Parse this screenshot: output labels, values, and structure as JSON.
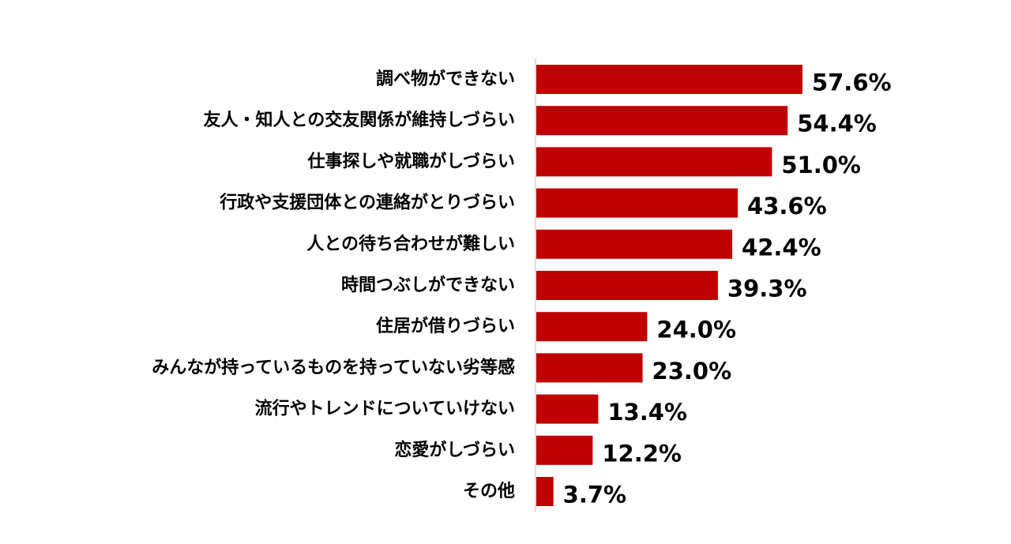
{
  "colors": {
    "bar": "#C00000",
    "axis": "#D0D0D0",
    "text": "#000000"
  },
  "chart_data": {
    "type": "bar",
    "orientation": "horizontal",
    "title": "",
    "xlabel": "",
    "ylabel": "",
    "xlim": [
      0,
      100
    ],
    "grid": false,
    "legend": "none",
    "categories": [
      "調べ物ができない",
      "友人・知人との交友関係が維持しづらい",
      "仕事探しや就職がしづらい",
      "行政や支援団体との連絡がとりづらい",
      "人との待ち合わせが難しい",
      "時間つぶしができない",
      "住居が借りづらい",
      "みんなが持っているものを持っていない劣等感",
      "流行やトレンドについていけない",
      "恋愛がしづらい",
      "その他"
    ],
    "values": [
      57.6,
      54.4,
      51.0,
      43.6,
      42.4,
      39.3,
      24.0,
      23.0,
      13.4,
      12.2,
      3.7
    ],
    "value_labels": [
      "57.6%",
      "54.4%",
      "51.0%",
      "43.6%",
      "42.4%",
      "39.3%",
      "24.0%",
      "23.0%",
      "13.4%",
      "12.2%",
      "3.7%"
    ]
  }
}
